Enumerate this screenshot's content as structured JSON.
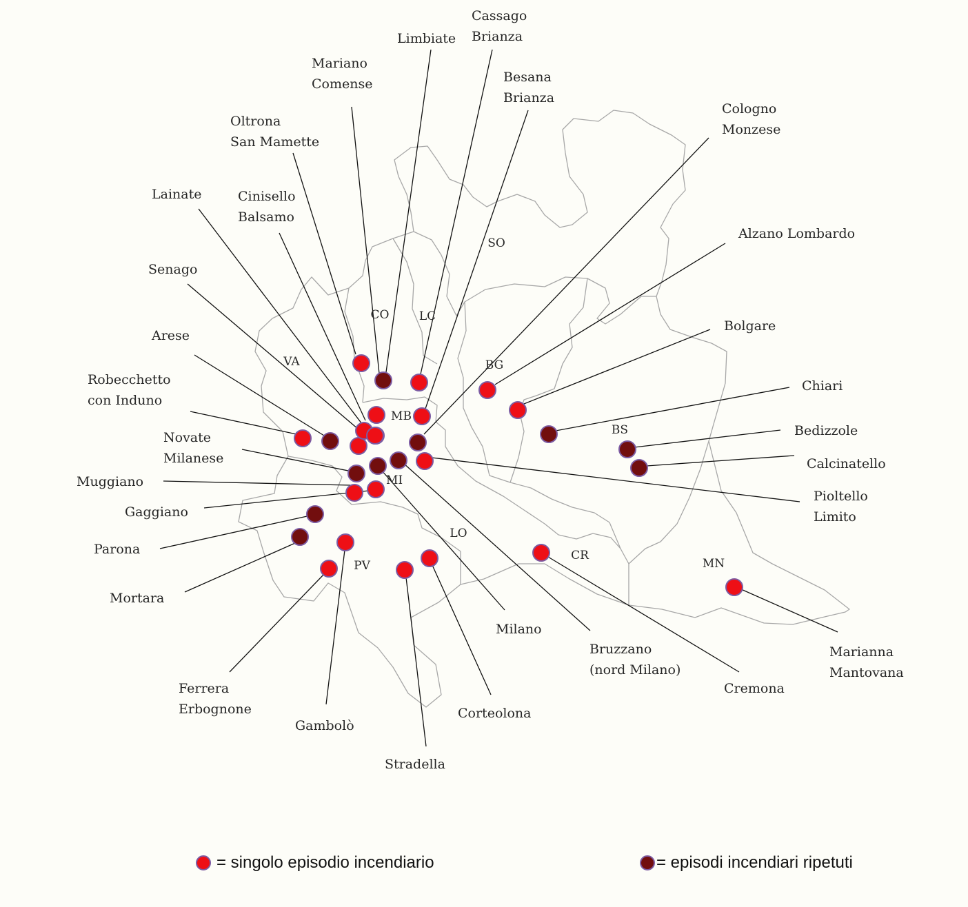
{
  "colors": {
    "single": "#ee0f16",
    "repeated": "#720e0e",
    "dot_border": "#7c5ba2",
    "border": "#a7a7a7",
    "background": "#fdfdf8"
  },
  "provinces": [
    {
      "id": "SO",
      "label": "SO"
    },
    {
      "id": "CO",
      "label": "CO"
    },
    {
      "id": "LC",
      "label": "LC"
    },
    {
      "id": "VA",
      "label": "VA"
    },
    {
      "id": "BG",
      "label": "BG"
    },
    {
      "id": "MB",
      "label": "MB"
    },
    {
      "id": "MI",
      "label": "MI"
    },
    {
      "id": "BS",
      "label": "BS"
    },
    {
      "id": "LO",
      "label": "LO"
    },
    {
      "id": "CR",
      "label": "CR"
    },
    {
      "id": "PV",
      "label": "PV"
    },
    {
      "id": "MN",
      "label": "MN"
    }
  ],
  "places": [
    {
      "id": "limbiate",
      "lines": [
        "Limbiate"
      ],
      "type": "repeated"
    },
    {
      "id": "cassago-brianza",
      "lines": [
        "Cassago",
        "Brianza"
      ],
      "type": "single"
    },
    {
      "id": "mariano-comense",
      "lines": [
        "Mariano",
        "Comense"
      ],
      "type": "single"
    },
    {
      "id": "besana-brianza",
      "lines": [
        "Besana",
        "Brianza"
      ],
      "type": "single"
    },
    {
      "id": "oltrona-san-mamette",
      "lines": [
        "Oltrona",
        "San Mamette"
      ],
      "type": "single"
    },
    {
      "id": "cologno-monzese",
      "lines": [
        "Cologno",
        "Monzese"
      ],
      "type": "repeated"
    },
    {
      "id": "lainate",
      "lines": [
        "Lainate"
      ],
      "type": "single"
    },
    {
      "id": "cinisello-balsamo",
      "lines": [
        "Cinisello",
        "Balsamo"
      ],
      "type": "single"
    },
    {
      "id": "alzano-lombardo",
      "lines": [
        "Alzano Lombardo"
      ],
      "type": "single"
    },
    {
      "id": "senago",
      "lines": [
        "Senago"
      ],
      "type": "single"
    },
    {
      "id": "arese",
      "lines": [
        "Arese"
      ],
      "type": "repeated"
    },
    {
      "id": "bolgare",
      "lines": [
        "Bolgare"
      ],
      "type": "single"
    },
    {
      "id": "robecchetto-con-induno",
      "lines": [
        "Robecchetto",
        "con Induno"
      ],
      "type": "single"
    },
    {
      "id": "chiari",
      "lines": [
        "Chiari"
      ],
      "type": "repeated"
    },
    {
      "id": "bedizzole",
      "lines": [
        "Bedizzole"
      ],
      "type": "repeated"
    },
    {
      "id": "novate-milanese",
      "lines": [
        "Novate",
        "Milanese"
      ],
      "type": "repeated"
    },
    {
      "id": "calcinatello",
      "lines": [
        "Calcinatello"
      ],
      "type": "repeated"
    },
    {
      "id": "muggiano",
      "lines": [
        "Muggiano"
      ],
      "type": "single"
    },
    {
      "id": "pioltello-limito",
      "lines": [
        "Pioltello",
        "Limito"
      ],
      "type": "single"
    },
    {
      "id": "gaggiano",
      "lines": [
        "Gaggiano"
      ],
      "type": "single"
    },
    {
      "id": "parona",
      "lines": [
        "Parona"
      ],
      "type": "repeated"
    },
    {
      "id": "mortara",
      "lines": [
        "Mortara"
      ],
      "type": "repeated"
    },
    {
      "id": "milano",
      "lines": [
        "Milano"
      ],
      "type": "repeated"
    },
    {
      "id": "bruzzano",
      "lines": [
        "Bruzzano",
        "(nord Milano)"
      ],
      "type": "repeated"
    },
    {
      "id": "cremona",
      "lines": [
        "Cremona"
      ],
      "type": "single"
    },
    {
      "id": "marianna-mantovana",
      "lines": [
        "Marianna",
        "Mantovana"
      ],
      "type": "single"
    },
    {
      "id": "ferrera-erbognone",
      "lines": [
        "Ferrera",
        "Erbognone"
      ],
      "type": "single"
    },
    {
      "id": "gambolo",
      "lines": [
        "Gambolò"
      ],
      "type": "single"
    },
    {
      "id": "corteolona",
      "lines": [
        "Corteolona"
      ],
      "type": "single"
    },
    {
      "id": "stradella",
      "lines": [
        "Stradella"
      ],
      "type": "single"
    }
  ],
  "extra_dots": [
    {
      "id": "extra-1",
      "type": "single"
    }
  ],
  "legend": {
    "single_label": "= singolo episodio incendiario",
    "repeated_label": "= episodi incendiari ripetuti"
  }
}
